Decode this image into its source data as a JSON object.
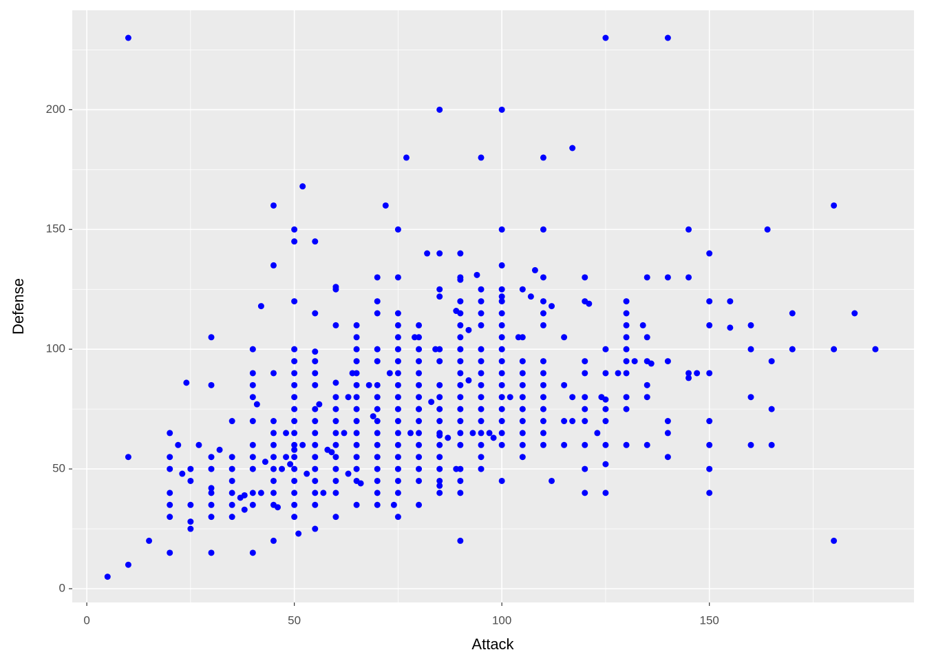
{
  "chart_data": {
    "type": "scatter",
    "x_label": "Attack",
    "y_label": "Defense",
    "xlim": [
      -3.5,
      199.3
    ],
    "ylim": [
      -5.75,
      241.5
    ],
    "xticks": [
      0,
      50,
      100,
      150
    ],
    "yticks": [
      0,
      50,
      100,
      150,
      200
    ],
    "x_minor_grid": [
      25,
      75,
      125,
      175
    ],
    "y_minor_grid": [
      25,
      75,
      125,
      175,
      225
    ],
    "grid": true,
    "panel_color": "#ebebeb",
    "x": [
      5,
      10,
      10,
      10,
      15,
      20,
      20,
      20,
      20,
      20,
      20,
      20,
      22,
      23,
      24,
      25,
      25,
      25,
      25,
      25,
      27,
      30,
      30,
      30,
      30,
      30,
      30,
      30,
      30,
      30,
      32,
      35,
      35,
      35,
      35,
      35,
      35,
      35,
      37,
      38,
      38,
      40,
      40,
      40,
      40,
      40,
      40,
      40,
      40,
      40,
      40,
      40,
      41,
      42,
      42,
      43,
      45,
      45,
      45,
      45,
      45,
      45,
      45,
      45,
      45,
      45,
      45,
      45,
      46,
      47,
      48,
      48,
      49,
      50,
      50,
      50,
      50,
      50,
      50,
      50,
      50,
      50,
      50,
      50,
      50,
      50,
      50,
      50,
      50,
      50,
      50,
      50,
      51,
      52,
      52,
      53,
      55,
      55,
      55,
      55,
      55,
      55,
      55,
      55,
      55,
      55,
      55,
      55,
      55,
      55,
      55,
      55,
      56,
      57,
      58,
      59,
      60,
      60,
      60,
      60,
      60,
      60,
      60,
      60,
      60,
      60,
      60,
      60,
      60,
      60,
      62,
      63,
      63,
      64,
      65,
      65,
      65,
      65,
      65,
      65,
      65,
      65,
      65,
      65,
      65,
      65,
      65,
      65,
      65,
      66,
      68,
      69,
      70,
      70,
      70,
      70,
      70,
      70,
      70,
      70,
      70,
      70,
      70,
      70,
      70,
      70,
      70,
      70,
      72,
      73,
      74,
      75,
      75,
      75,
      75,
      75,
      75,
      75,
      75,
      75,
      75,
      75,
      75,
      75,
      75,
      75,
      75,
      75,
      75,
      75,
      77,
      78,
      79,
      80,
      80,
      80,
      80,
      80,
      80,
      80,
      80,
      80,
      80,
      80,
      80,
      80,
      80,
      80,
      80,
      82,
      83,
      84,
      85,
      85,
      85,
      85,
      85,
      85,
      85,
      85,
      85,
      85,
      85,
      85,
      85,
      85,
      85,
      85,
      85,
      85,
      87,
      89,
      89,
      90,
      90,
      90,
      90,
      90,
      90,
      90,
      90,
      90,
      90,
      90,
      90,
      90,
      90,
      90,
      90,
      90,
      90,
      90,
      90,
      92,
      92,
      93,
      94,
      95,
      95,
      95,
      95,
      95,
      95,
      95,
      95,
      95,
      95,
      95,
      95,
      95,
      95,
      95,
      95,
      97,
      98,
      100,
      100,
      100,
      100,
      100,
      100,
      100,
      100,
      100,
      100,
      100,
      100,
      100,
      100,
      100,
      100,
      100,
      100,
      100,
      102,
      104,
      105,
      105,
      105,
      105,
      105,
      105,
      105,
      105,
      105,
      105,
      105,
      107,
      108,
      110,
      110,
      110,
      110,
      110,
      110,
      110,
      110,
      110,
      110,
      110,
      110,
      110,
      110,
      112,
      112,
      115,
      115,
      115,
      115,
      117,
      117,
      117,
      120,
      120,
      120,
      120,
      120,
      120,
      120,
      120,
      120,
      120,
      121,
      123,
      124,
      125,
      125,
      125,
      125,
      125,
      125,
      125,
      125,
      125,
      128,
      130,
      130,
      130,
      130,
      130,
      130,
      130,
      130,
      130,
      130,
      132,
      134,
      135,
      135,
      135,
      135,
      135,
      135,
      136,
      140,
      140,
      140,
      140,
      140,
      140,
      145,
      145,
      145,
      145,
      147,
      150,
      150,
      150,
      150,
      150,
      150,
      150,
      150,
      155,
      155,
      160,
      160,
      160,
      160,
      164,
      165,
      165,
      165,
      170,
      170,
      180,
      180,
      180,
      185,
      190
    ],
    "series": [
      {
        "color": "#0000ff",
        "values": [
          5,
          10,
          55,
          230,
          20,
          15,
          30,
          35,
          40,
          50,
          55,
          65,
          60,
          48,
          86,
          25,
          28,
          35,
          45,
          50,
          60,
          15,
          30,
          35,
          40,
          42,
          50,
          55,
          85,
          105,
          58,
          30,
          35,
          40,
          45,
          50,
          55,
          70,
          38,
          33,
          39,
          15,
          35,
          40,
          50,
          55,
          60,
          70,
          80,
          85,
          90,
          100,
          77,
          40,
          118,
          53,
          20,
          35,
          40,
          45,
          50,
          55,
          60,
          65,
          70,
          90,
          135,
          160,
          34,
          50,
          55,
          65,
          52,
          30,
          35,
          40,
          45,
          50,
          55,
          58,
          60,
          65,
          70,
          75,
          80,
          85,
          90,
          95,
          100,
          120,
          145,
          150,
          23,
          168,
          60,
          48,
          25,
          35,
          40,
          45,
          50,
          55,
          60,
          65,
          70,
          75,
          85,
          90,
          95,
          99,
          115,
          145,
          77,
          40,
          58,
          57,
          30,
          40,
          45,
          50,
          55,
          60,
          65,
          70,
          75,
          80,
          86,
          110,
          125,
          126,
          65,
          48,
          80,
          90,
          35,
          45,
          50,
          55,
          60,
          65,
          70,
          75,
          80,
          85,
          90,
          95,
          100,
          105,
          110,
          44,
          85,
          72,
          35,
          40,
          45,
          50,
          55,
          60,
          65,
          70,
          75,
          80,
          85,
          95,
          100,
          115,
          120,
          130,
          160,
          90,
          35,
          50,
          30,
          40,
          45,
          55,
          60,
          65,
          70,
          75,
          80,
          85,
          90,
          95,
          100,
          105,
          110,
          115,
          130,
          150,
          180,
          65,
          105,
          75,
          35,
          45,
          50,
          55,
          60,
          65,
          70,
          75,
          80,
          85,
          90,
          95,
          100,
          105,
          110,
          140,
          78,
          100,
          64,
          40,
          43,
          45,
          50,
          55,
          60,
          65,
          70,
          75,
          80,
          85,
          95,
          100,
          122,
          125,
          140,
          200,
          63,
          50,
          116,
          20,
          40,
          45,
          50,
          60,
          65,
          70,
          75,
          80,
          85,
          90,
          95,
          100,
          105,
          110,
          115,
          120,
          129,
          130,
          140,
          87,
          108,
          65,
          131,
          50,
          55,
          60,
          65,
          70,
          75,
          80,
          85,
          90,
          95,
          100,
          110,
          115,
          120,
          125,
          180,
          65,
          63,
          45,
          60,
          65,
          70,
          75,
          80,
          85,
          90,
          95,
          100,
          105,
          110,
          115,
          120,
          122,
          125,
          135,
          150,
          200,
          80,
          105,
          55,
          60,
          65,
          70,
          75,
          80,
          85,
          90,
          95,
          105,
          125,
          122,
          133,
          60,
          65,
          70,
          75,
          80,
          85,
          90,
          95,
          110,
          115,
          120,
          130,
          150,
          180,
          45,
          118,
          60,
          70,
          85,
          105,
          70,
          80,
          184,
          40,
          50,
          60,
          70,
          75,
          80,
          90,
          95,
          120,
          130,
          119,
          65,
          80,
          40,
          52,
          60,
          70,
          75,
          79,
          90,
          100,
          230,
          90,
          60,
          75,
          80,
          90,
          95,
          100,
          105,
          110,
          115,
          120,
          95,
          110,
          60,
          80,
          85,
          95,
          105,
          130,
          94,
          55,
          65,
          70,
          95,
          130,
          230,
          88,
          90,
          130,
          150,
          90,
          40,
          50,
          60,
          70,
          90,
          110,
          120,
          140,
          109,
          120,
          60,
          80,
          100,
          110,
          150,
          60,
          75,
          95,
          100,
          115,
          20,
          100,
          160,
          115,
          100
        ]
      }
    ]
  }
}
